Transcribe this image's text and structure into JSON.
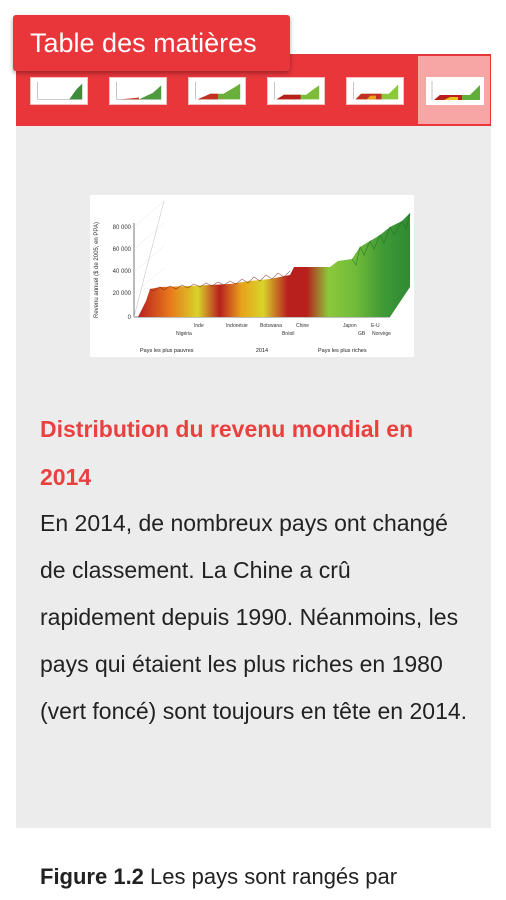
{
  "toc": {
    "label": "Table des matières"
  },
  "thumbnails": {
    "count": 6,
    "active_index": 5
  },
  "figure": {
    "y_axis_label": "Revenu annuel ($ de 2005, en PPA)",
    "y_ticks": [
      "80 000",
      "60 000",
      "40 000",
      "20 000",
      "0"
    ],
    "country_labels_top": [
      "Inde",
      "Indonésie",
      "Botswana",
      "Chine",
      "Japon",
      "E-U"
    ],
    "country_labels_bottom": [
      "Nigéria",
      "Brésil",
      "GB",
      "Norvège"
    ],
    "bottom_left": "Pays les plus pauvres",
    "bottom_center": "2014",
    "bottom_right": "Pays les plus riches",
    "colors": {
      "dark_red": "#b8201e",
      "orange": "#e87a1c",
      "yellow": "#d8d42a",
      "light_green": "#8cc83c",
      "dark_green": "#2f8a34"
    }
  },
  "caption": {
    "title": "Distribution du revenu mondial en 2014",
    "text": "En 2014, de nombreux pays ont changé de classement. La Chine a crû rapidement depuis 1990. Néanmoins, les pays qui étaient les plus riches en 1980 (vert foncé) sont toujours en tête en 2014."
  },
  "next_caption": {
    "label": "Figure 1.2",
    "text": " Les pays sont rangés par"
  },
  "theme": {
    "accent": "#e8363b",
    "title_color": "#e8413f",
    "panel_bg": "#ececec"
  }
}
